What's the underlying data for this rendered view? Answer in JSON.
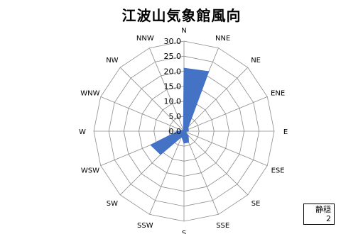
{
  "chart_data": {
    "type": "radar",
    "title": "江波山気象館風向",
    "categories": [
      "N",
      "NNE",
      "NE",
      "ENE",
      "E",
      "ESE",
      "SE",
      "SSE",
      "S",
      "SSW",
      "SW",
      "WSW",
      "W",
      "WNW",
      "NW",
      "NNW"
    ],
    "ticks": [
      "0.0",
      "5.0",
      "10.0",
      "15.0",
      "20.0",
      "25.0",
      "30.0"
    ],
    "rlim": [
      0,
      30
    ],
    "series": [
      {
        "values": [
          21,
          21.5,
          2,
          1.5,
          1.5,
          0.5,
          2,
          4,
          4,
          2,
          11,
          12,
          2,
          0.5,
          0.5,
          0.5
        ],
        "color": "#4472C4"
      }
    ],
    "grid": true,
    "calm": {
      "label": "静穏",
      "value": "2"
    }
  }
}
